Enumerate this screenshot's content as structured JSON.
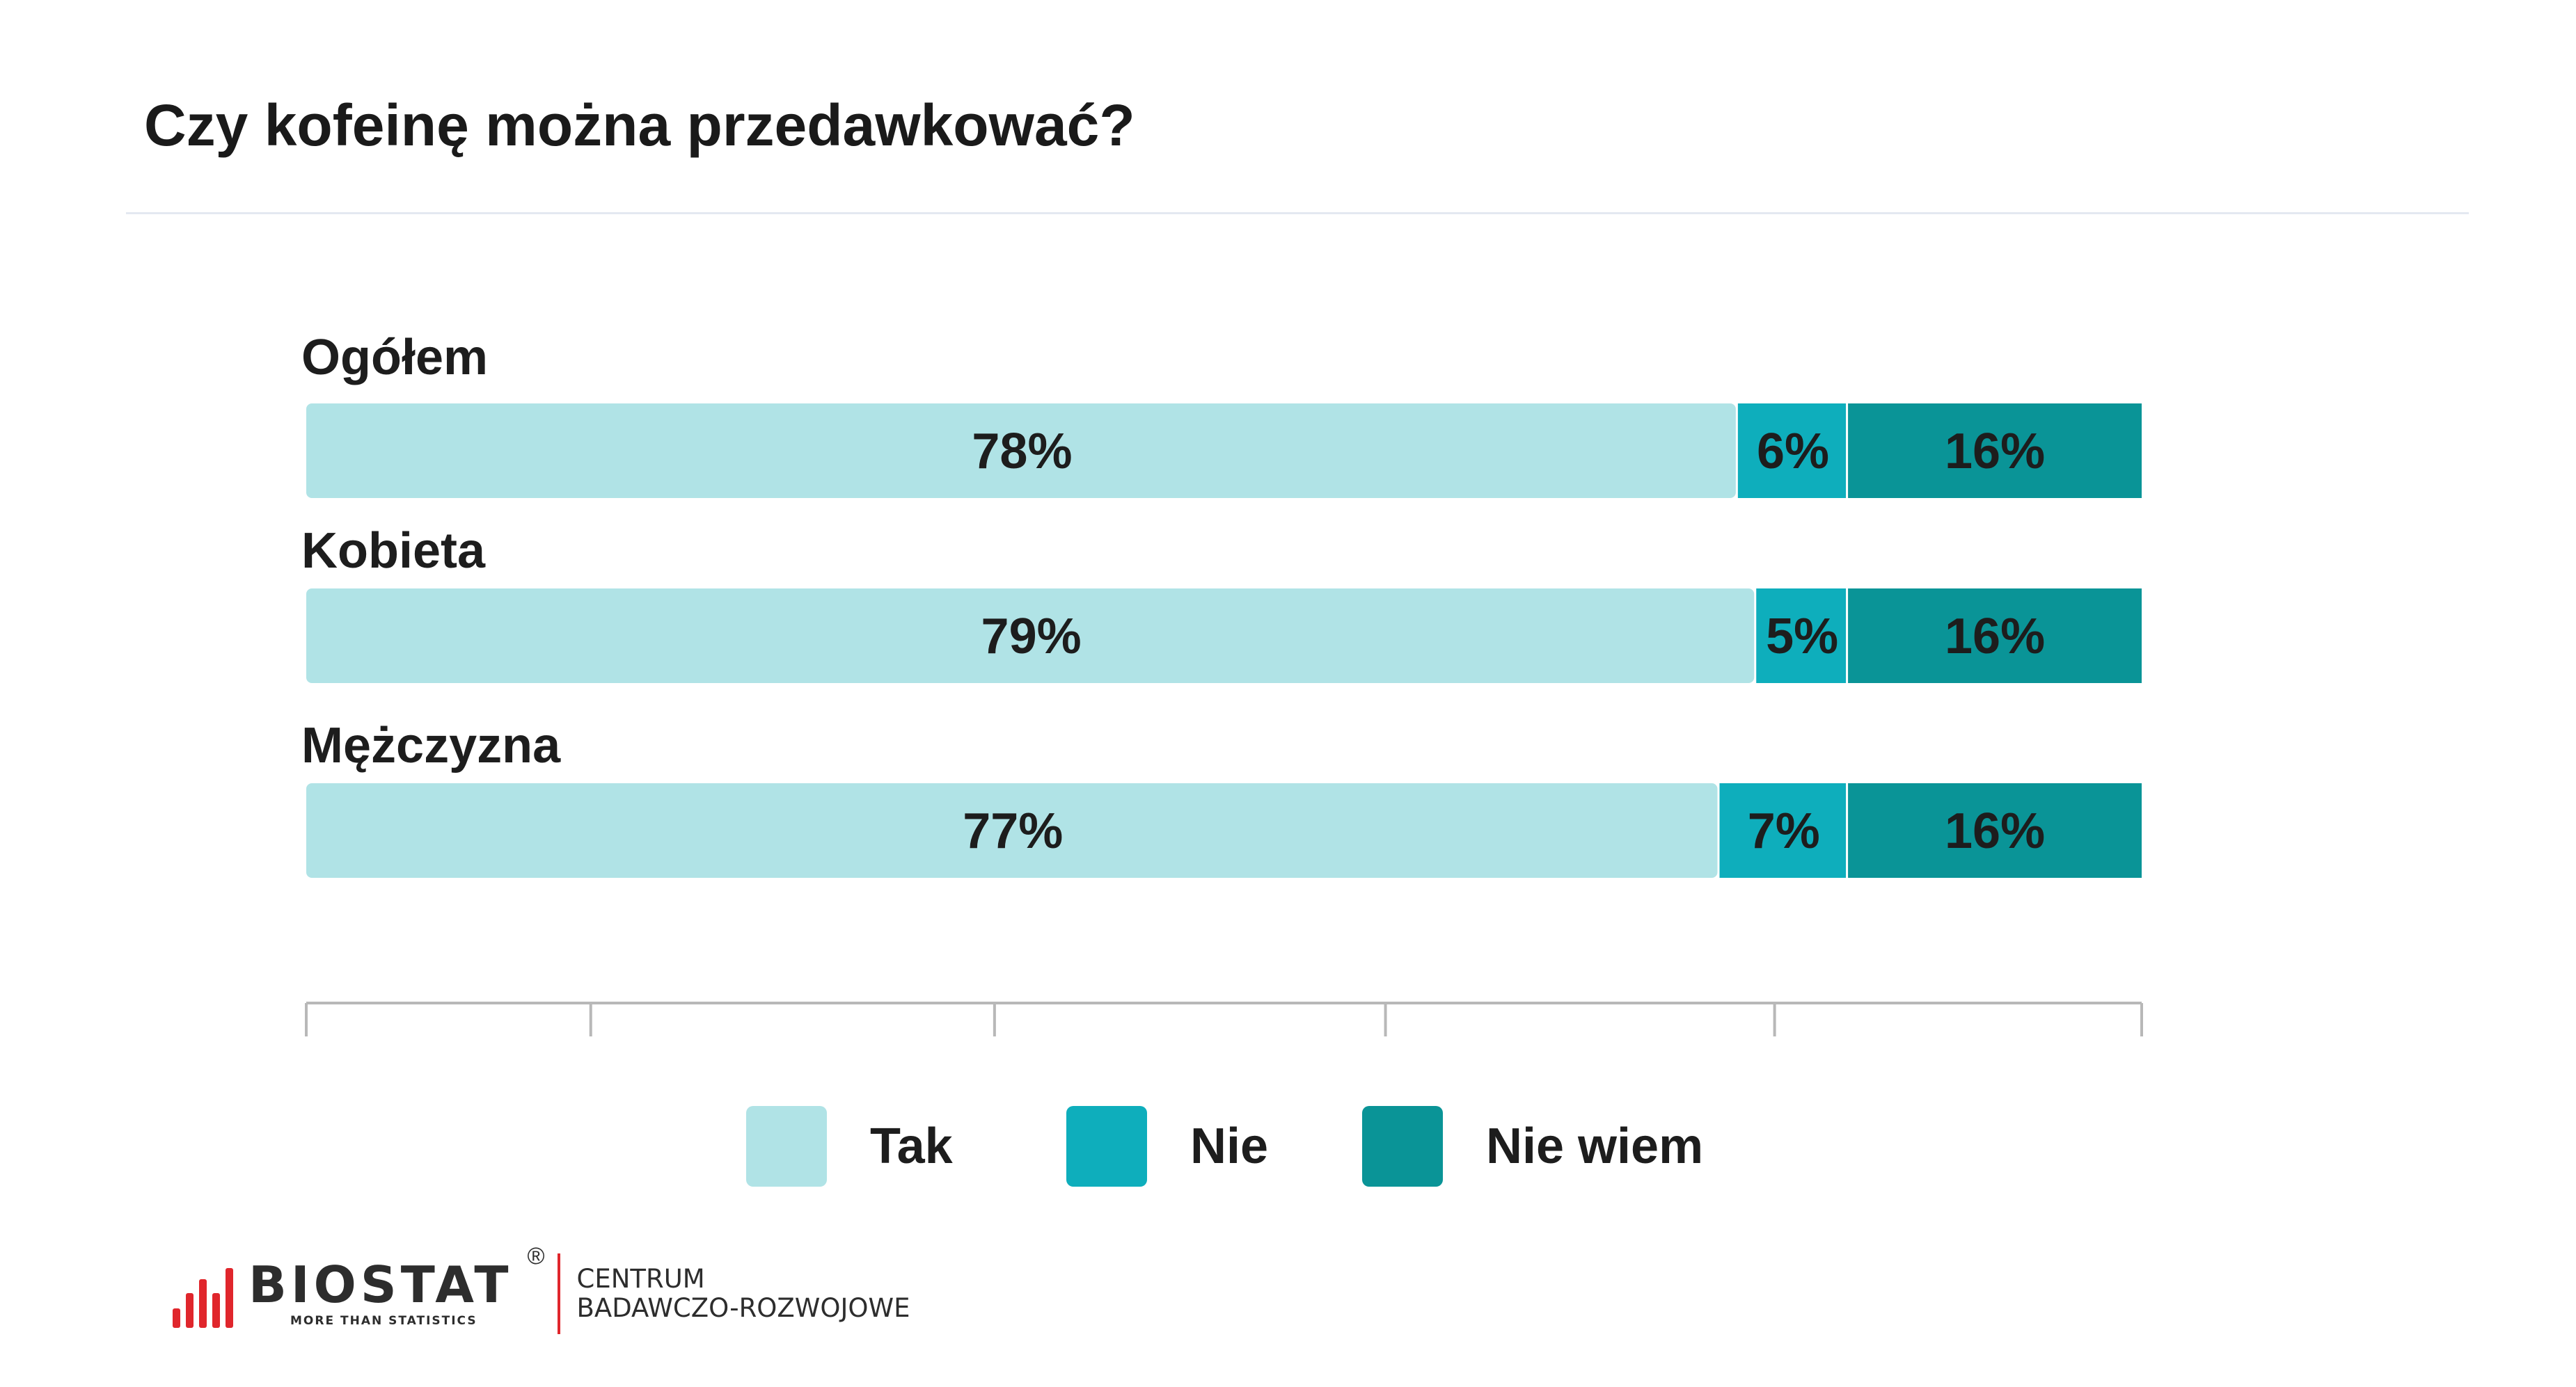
{
  "title": "Czy kofeinę można przedawkować?",
  "chart_data": {
    "type": "bar",
    "orientation": "horizontal",
    "stacked": true,
    "categories": [
      "Ogółem",
      "Kobieta",
      "Mężczyzna"
    ],
    "series": [
      {
        "name": "Tak",
        "values": [
          78,
          79,
          77
        ],
        "labels": [
          "78%",
          "79%",
          "77%"
        ],
        "color": "#b0e3e6"
      },
      {
        "name": "Nie",
        "values": [
          6,
          5,
          7
        ],
        "labels": [
          "6%",
          "5%",
          "7%"
        ],
        "color": "#0eaebc"
      },
      {
        "name": "Nie wiem",
        "values": [
          16,
          16,
          16
        ],
        "labels": [
          "16%",
          "16%",
          "16%"
        ],
        "color": "#0a9497"
      }
    ],
    "xlim": [
      0,
      100
    ],
    "legend": "bottom-center"
  },
  "footer": {
    "logo_text": "BIOSTAT",
    "logo_tagline": "MORE THAN STATISTICS",
    "logo_registered": "®",
    "centrum_line1": "CENTRUM",
    "centrum_line2": "BADAWCZO-ROZWOJOWE",
    "brand_color": "#e0262c"
  }
}
